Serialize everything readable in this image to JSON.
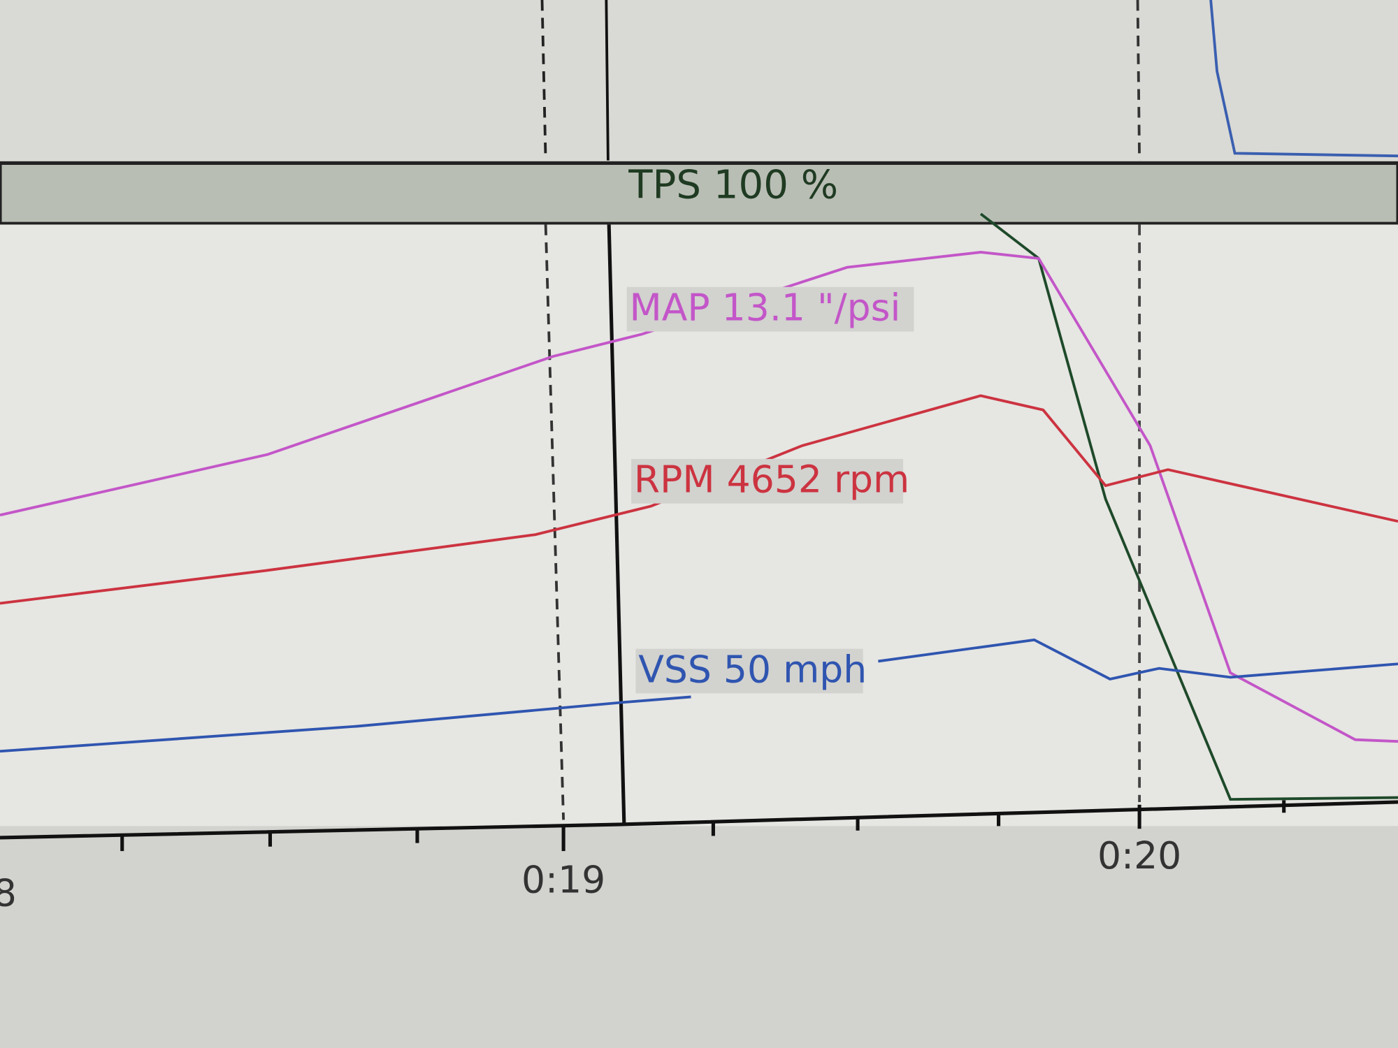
{
  "header": {
    "label": "TPS 100 %"
  },
  "readouts": [
    {
      "label": "MAP 13.1 \"/psi"
    },
    {
      "label": "RPM 4652 rpm"
    },
    {
      "label": "VSS 50 mph"
    }
  ],
  "time_axis": {
    "labels": [
      "8",
      "0:19",
      "0:20"
    ]
  }
}
